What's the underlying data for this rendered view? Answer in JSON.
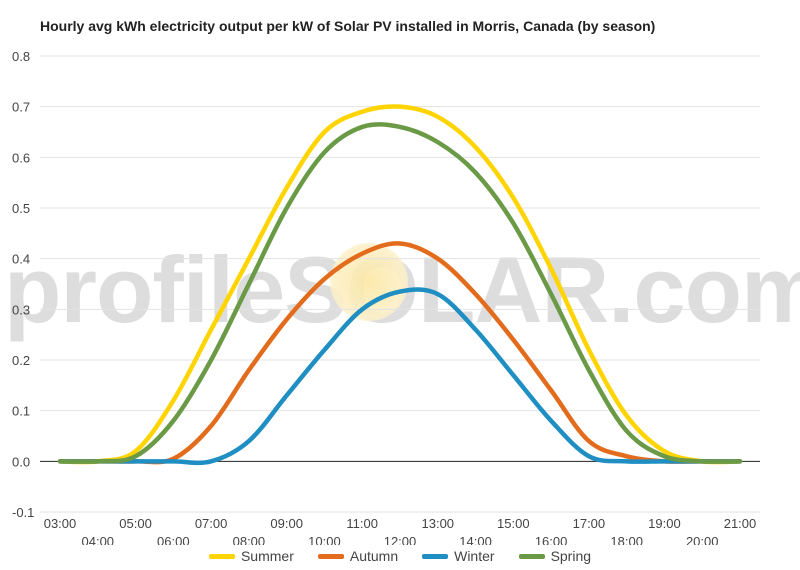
{
  "chart_data": {
    "type": "line",
    "title": "Hourly avg kWh electricity output per kW of Solar PV installed in Morris, Canada (by season)",
    "xlabel": "",
    "ylabel": "",
    "ylim": [
      -0.1,
      0.8
    ],
    "yticks": [
      "-0.1",
      "0.0",
      "0.1",
      "0.2",
      "0.3",
      "0.4",
      "0.5",
      "0.6",
      "0.7",
      "0.8"
    ],
    "x": [
      "03:00",
      "04:00",
      "05:00",
      "06:00",
      "07:00",
      "08:00",
      "09:00",
      "10:00",
      "11:00",
      "12:00",
      "13:00",
      "14:00",
      "15:00",
      "16:00",
      "17:00",
      "18:00",
      "19:00",
      "20:00",
      "21:00"
    ],
    "grid": true,
    "legend_position": "bottom",
    "series": [
      {
        "name": "Summer",
        "color": "#FFD400",
        "values": [
          0.0,
          0.0,
          0.02,
          0.12,
          0.26,
          0.4,
          0.54,
          0.65,
          0.69,
          0.7,
          0.68,
          0.62,
          0.52,
          0.38,
          0.22,
          0.09,
          0.02,
          0.0,
          0.0
        ]
      },
      {
        "name": "Autumn",
        "color": "#E36C1C",
        "values": [
          0.0,
          0.0,
          0.0,
          0.005,
          0.07,
          0.18,
          0.28,
          0.36,
          0.41,
          0.43,
          0.4,
          0.33,
          0.24,
          0.14,
          0.04,
          0.01,
          0.0,
          0.0,
          0.0
        ]
      },
      {
        "name": "Winter",
        "color": "#1F8EC2",
        "values": [
          0.0,
          0.0,
          0.0,
          0.0,
          0.0,
          0.04,
          0.13,
          0.22,
          0.3,
          0.335,
          0.33,
          0.26,
          0.17,
          0.08,
          0.01,
          0.0,
          0.0,
          0.0,
          0.0
        ]
      },
      {
        "name": "Spring",
        "color": "#6B9A47",
        "values": [
          0.0,
          0.0,
          0.01,
          0.08,
          0.2,
          0.35,
          0.5,
          0.61,
          0.66,
          0.66,
          0.63,
          0.57,
          0.47,
          0.33,
          0.18,
          0.06,
          0.01,
          0.0,
          0.0
        ]
      }
    ]
  },
  "watermark": {
    "text": "profileSOLAR.com"
  }
}
